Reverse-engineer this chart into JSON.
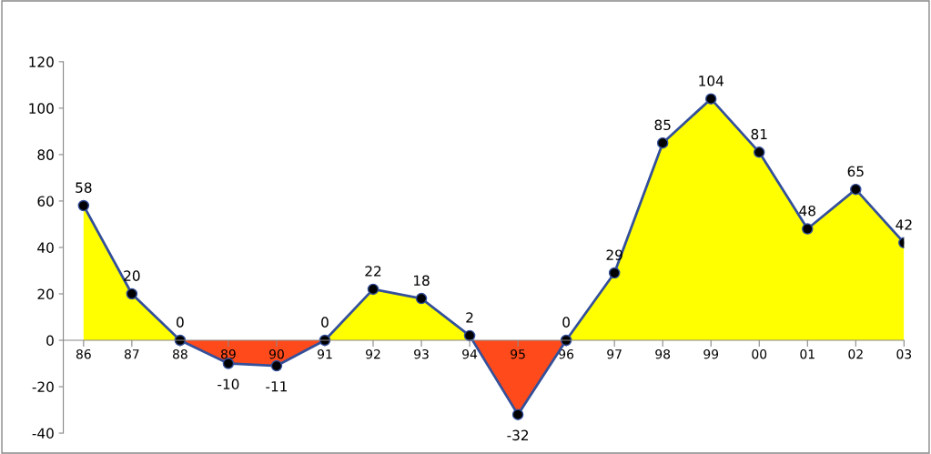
{
  "chart_data": {
    "type": "area",
    "categories": [
      "86",
      "87",
      "88",
      "89",
      "90",
      "91",
      "92",
      "93",
      "94",
      "95",
      "96",
      "97",
      "98",
      "99",
      "00",
      "01",
      "02",
      "03"
    ],
    "series": [
      {
        "color": "#ffff00",
        "values": [
          58,
          20,
          0,
          null,
          null,
          0,
          22,
          18,
          2,
          null,
          0,
          29,
          85,
          104,
          81,
          48,
          65,
          42
        ]
      },
      {
        "color": "#ff4a1c",
        "values": [
          null,
          null,
          0,
          -10,
          -11,
          0,
          null,
          null,
          2,
          -32,
          0,
          null,
          null,
          null,
          null,
          null,
          null,
          null
        ]
      },
      {
        "type": "line",
        "color": "#34509a",
        "marker": "circle",
        "values": [
          58,
          20,
          0,
          -10,
          -11,
          0,
          22,
          18,
          2,
          -32,
          0,
          29,
          85,
          104,
          81,
          48,
          65,
          42
        ],
        "value_labels": [
          "58",
          "20",
          "0",
          "-10",
          "-11",
          "0",
          "22",
          "18",
          "2",
          "-32",
          "0",
          "29",
          "85",
          "104",
          "81",
          "48",
          "65",
          "42"
        ]
      }
    ],
    "ylim": [
      -40,
      120
    ],
    "yticks": [
      -40,
      -20,
      0,
      20,
      40,
      60,
      80,
      100,
      120
    ],
    "grid": false,
    "legend": false
  }
}
